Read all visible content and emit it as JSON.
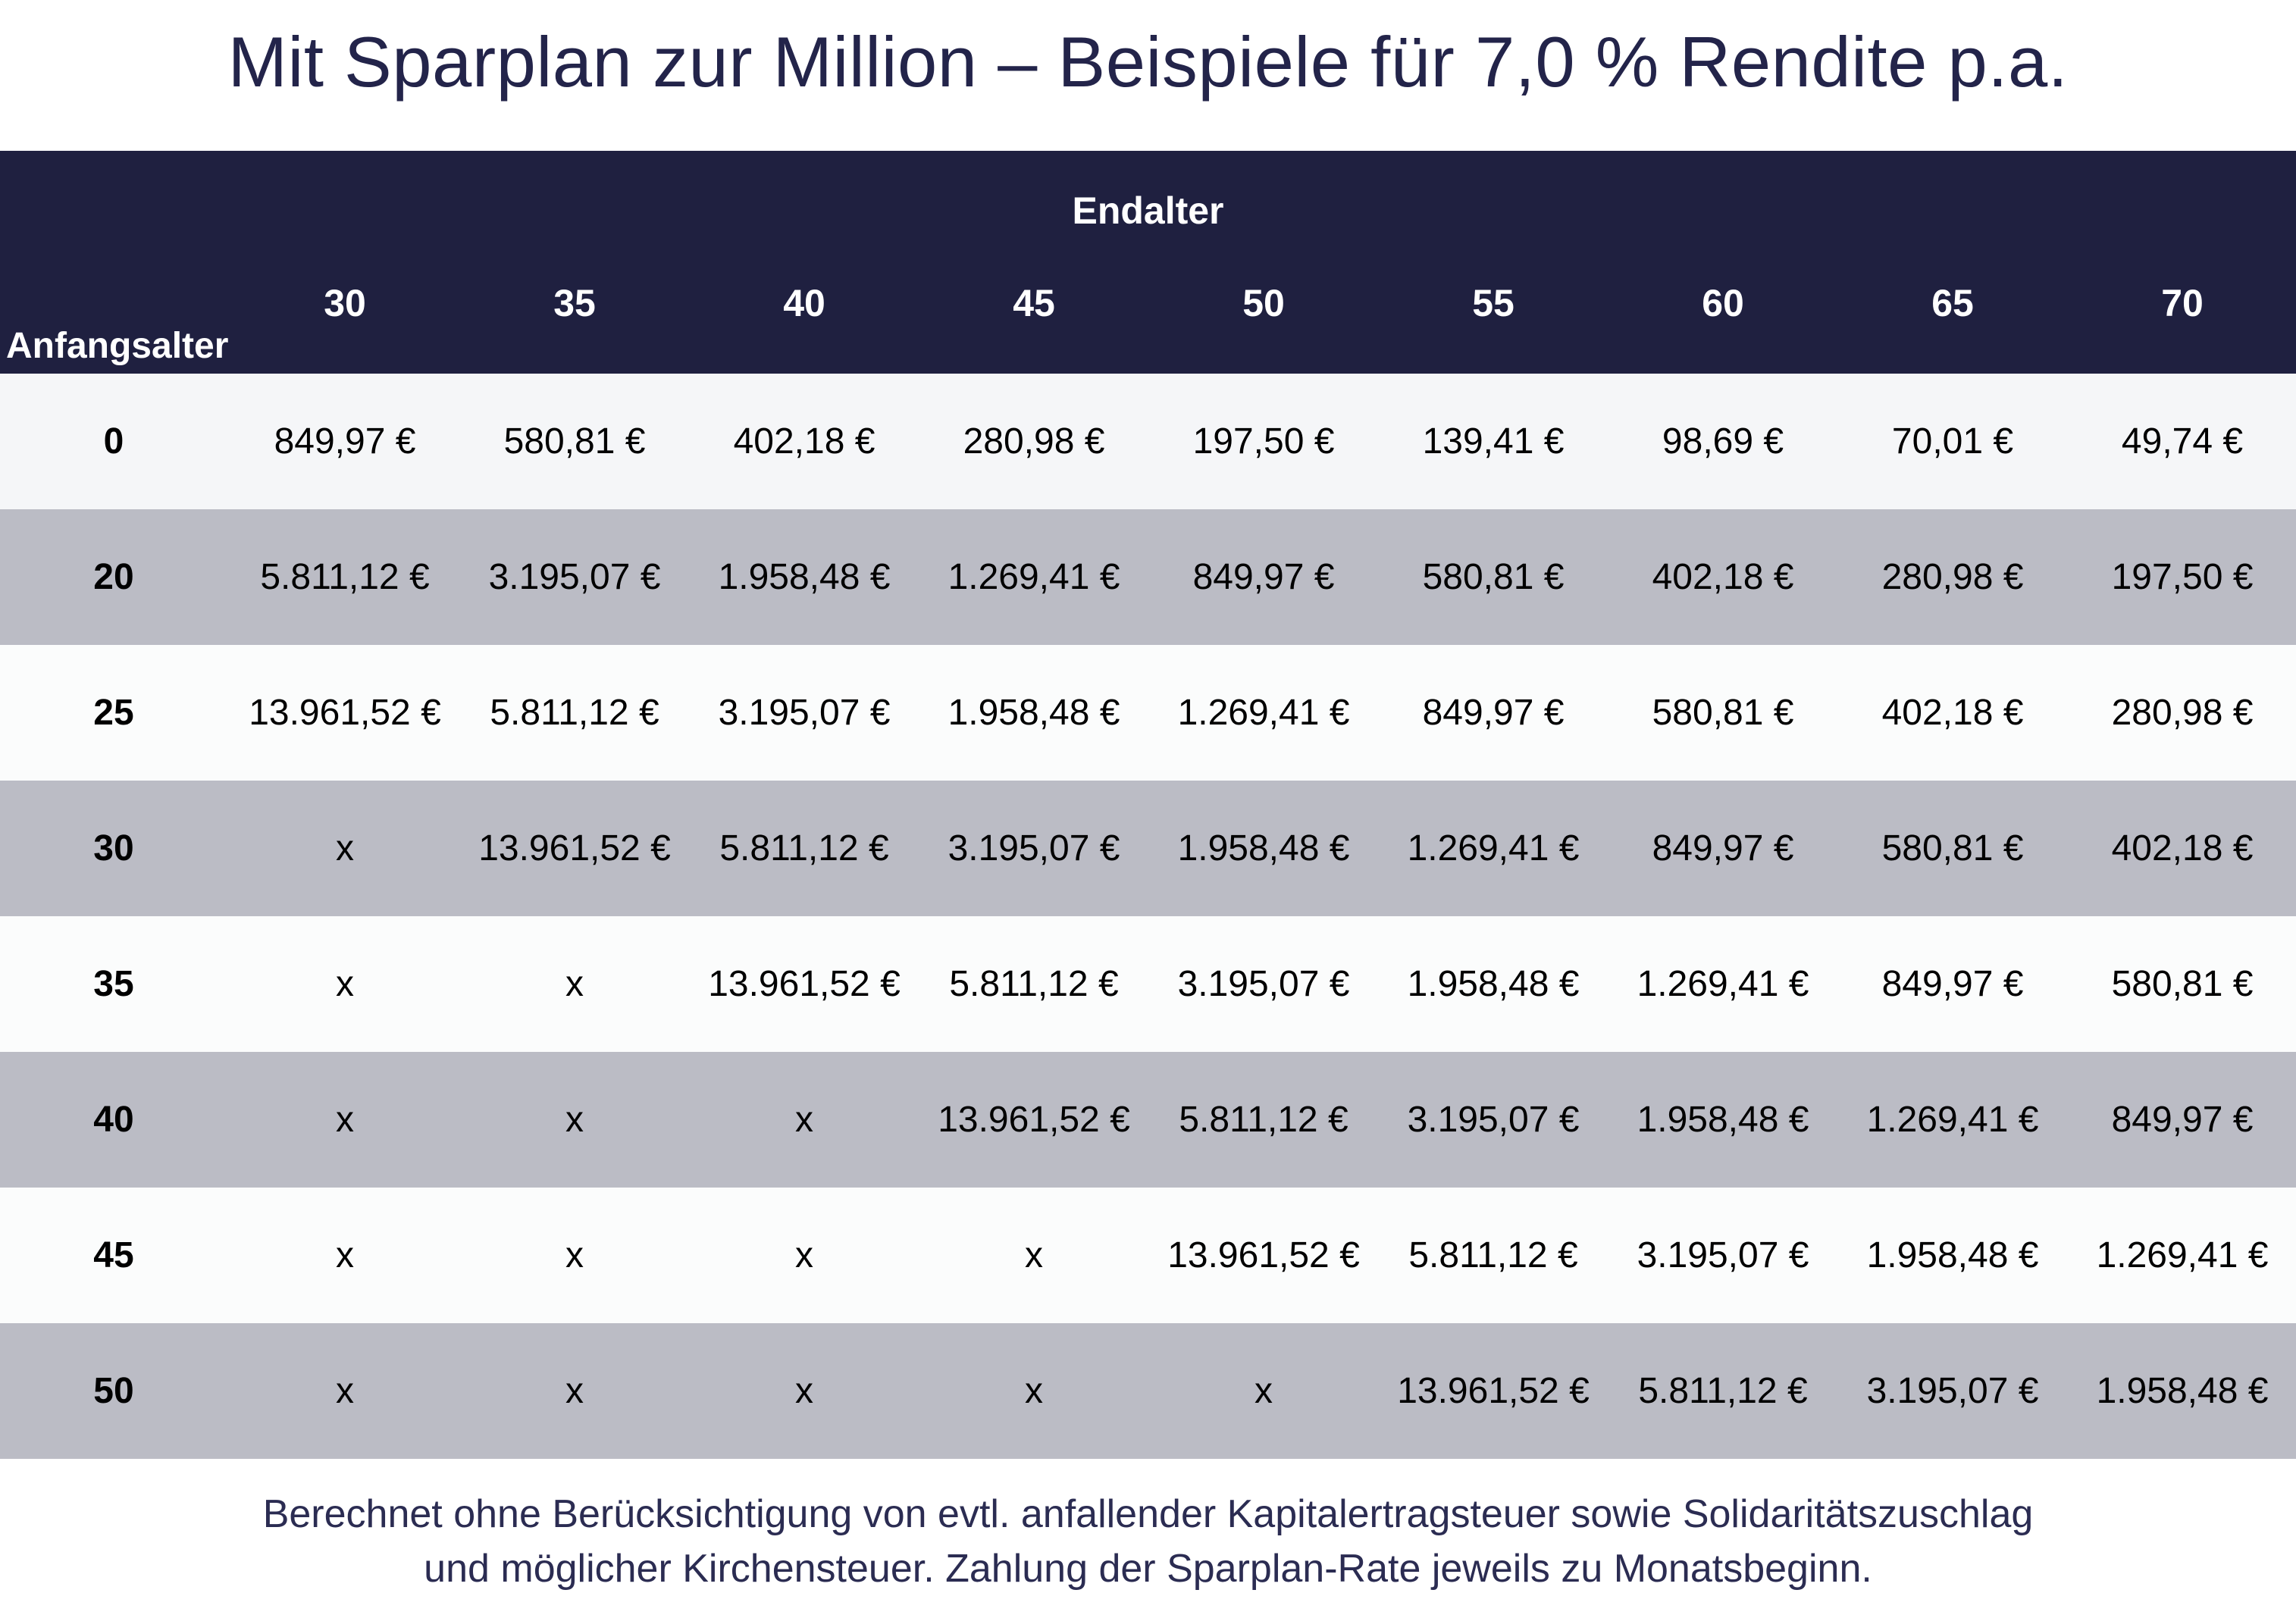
{
  "title": "Mit Sparplan zur Million – Beispiele für 7,0 % Rendite p.a.",
  "colors": {
    "header_bg": "#1f2040",
    "row_light": "#f5f6f8",
    "row_dark": "#bbbcc5",
    "row_white": "#fbfcfc"
  },
  "chart_data": {
    "type": "table",
    "column_group_label": "Endalter",
    "row_header_label": "Anfangsalter",
    "columns": [
      "30",
      "35",
      "40",
      "45",
      "50",
      "55",
      "60",
      "65",
      "70"
    ],
    "rows": [
      {
        "label": "0",
        "cells": [
          "849,97 €",
          "580,81 €",
          "402,18 €",
          "280,98 €",
          "197,50 €",
          "139,41 €",
          "98,69 €",
          "70,01 €",
          "49,74 €"
        ]
      },
      {
        "label": "20",
        "cells": [
          "5.811,12 €",
          "3.195,07 €",
          "1.958,48 €",
          "1.269,41 €",
          "849,97 €",
          "580,81 €",
          "402,18 €",
          "280,98 €",
          "197,50 €"
        ]
      },
      {
        "label": "25",
        "cells": [
          "13.961,52 €",
          "5.811,12 €",
          "3.195,07 €",
          "1.958,48 €",
          "1.269,41 €",
          "849,97 €",
          "580,81 €",
          "402,18 €",
          "280,98 €"
        ]
      },
      {
        "label": "30",
        "cells": [
          "x",
          "13.961,52 €",
          "5.811,12 €",
          "3.195,07 €",
          "1.958,48 €",
          "1.269,41 €",
          "849,97 €",
          "580,81 €",
          "402,18 €"
        ]
      },
      {
        "label": "35",
        "cells": [
          "x",
          "x",
          "13.961,52 €",
          "5.811,12 €",
          "3.195,07 €",
          "1.958,48 €",
          "1.269,41 €",
          "849,97 €",
          "580,81 €"
        ]
      },
      {
        "label": "40",
        "cells": [
          "x",
          "x",
          "x",
          "13.961,52 €",
          "5.811,12 €",
          "3.195,07 €",
          "1.958,48 €",
          "1.269,41 €",
          "849,97 €"
        ]
      },
      {
        "label": "45",
        "cells": [
          "x",
          "x",
          "x",
          "x",
          "13.961,52 €",
          "5.811,12 €",
          "3.195,07 €",
          "1.958,48 €",
          "1.269,41 €"
        ]
      },
      {
        "label": "50",
        "cells": [
          "x",
          "x",
          "x",
          "x",
          "x",
          "13.961,52 €",
          "5.811,12 €",
          "3.195,07 €",
          "1.958,48 €"
        ]
      }
    ]
  },
  "footnote": {
    "line1": "Berechnet ohne Berücksichtigung von evtl. anfallender Kapitalertragsteuer sowie Solidaritätszuschlag",
    "line2": "und möglicher Kirchensteuer. Zahlung der Sparplan-Rate jeweils zu Monatsbeginn."
  }
}
